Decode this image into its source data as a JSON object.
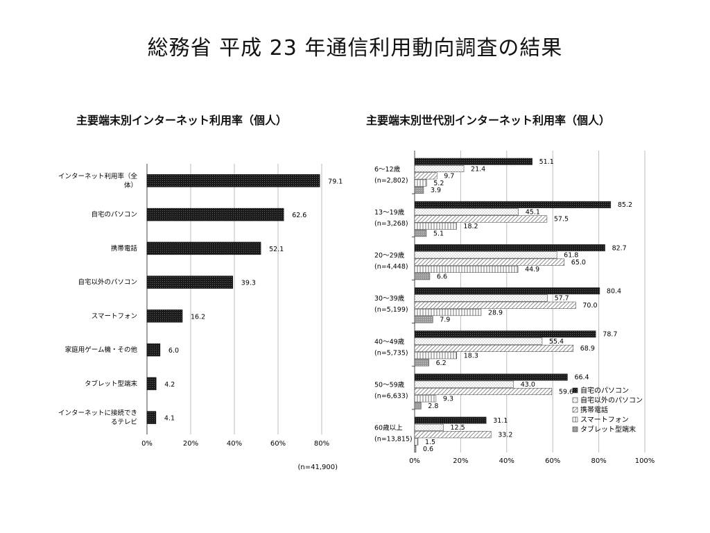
{
  "slide_title": "総務省 平成 23 年通信利用動向調査の結果",
  "chart_data": [
    {
      "type": "bar",
      "orientation": "horizontal",
      "title": "主要端末別インターネット利用率（個人）",
      "categories": [
        [
          "インターネット利用率（全",
          "体）"
        ],
        [
          "自宅のパソコン"
        ],
        [
          "携帯電話"
        ],
        [
          "自宅以外のパソコン"
        ],
        [
          "スマートフォン"
        ],
        [
          "家庭用ゲーム機・その他"
        ],
        [
          "タブレット型端末"
        ],
        [
          "インターネットに接続でき",
          "るテレビ"
        ]
      ],
      "values": [
        79.1,
        62.6,
        52.1,
        39.3,
        16.2,
        6.0,
        4.2,
        4.1
      ],
      "value_labels": [
        "79.1",
        "62.6",
        "52.1",
        "39.3",
        "16.2",
        "6.0",
        "4.2",
        "4.1"
      ],
      "xlim": [
        0,
        80
      ],
      "xticks": [
        "0%",
        "20%",
        "40%",
        "60%",
        "80%"
      ],
      "grid": true,
      "note": "(n=41,900)"
    },
    {
      "type": "bar",
      "orientation": "horizontal",
      "title": "主要端末別世代別インターネット利用率（個人）",
      "groups": [
        {
          "label": "6～12歳",
          "n": "(n=2,802)"
        },
        {
          "label": "13～19歳",
          "n": "(n=3,268)"
        },
        {
          "label": "20～29歳",
          "n": "(n=4,448)"
        },
        {
          "label": "30～39歳",
          "n": "(n=5,199)"
        },
        {
          "label": "40～49歳",
          "n": "(n=5,735)"
        },
        {
          "label": "50～59歳",
          "n": "(n=6,633)"
        },
        {
          "label": "60歳以上",
          "n": "(n=13,815)"
        }
      ],
      "series": [
        {
          "name": "自宅のパソコン",
          "values": [
            51.1,
            85.2,
            82.7,
            80.4,
            78.7,
            66.4,
            31.1
          ],
          "labels": [
            "51.1",
            "85.2",
            "82.7",
            "80.4",
            "78.7",
            "66.4",
            "31.1"
          ]
        },
        {
          "name": "自宅以外のパソコン",
          "values": [
            21.4,
            45.1,
            61.8,
            57.7,
            55.4,
            43.0,
            12.5
          ],
          "labels": [
            "21.4",
            "45.1",
            "61.8",
            "57.7",
            "55.4",
            "43.0",
            "12.5"
          ]
        },
        {
          "name": "携帯電話",
          "values": [
            9.7,
            57.5,
            65.0,
            70.0,
            68.9,
            59.6,
            33.2
          ],
          "labels": [
            "9.7",
            "57.5",
            "65.0",
            "70.0",
            "68.9",
            "59.6",
            "33.2"
          ]
        },
        {
          "name": "スマートフォン",
          "values": [
            5.2,
            18.2,
            44.9,
            28.9,
            18.3,
            9.3,
            1.5
          ],
          "labels": [
            "5.2",
            "18.2",
            "44.9",
            "28.9",
            "18.3",
            "9.3",
            "1.5"
          ]
        },
        {
          "name": "タブレット型端末",
          "values": [
            3.9,
            5.1,
            6.6,
            7.9,
            6.2,
            2.8,
            0.6
          ],
          "labels": [
            "3.9",
            "5.1",
            "6.6",
            "7.9",
            "6.2",
            "2.8",
            "0.6"
          ]
        }
      ],
      "xlim": [
        0,
        100
      ],
      "xticks": [
        "0%",
        "20%",
        "40%",
        "60%",
        "80%",
        "100%"
      ],
      "grid": true,
      "legend_position": "bottom-right"
    }
  ]
}
